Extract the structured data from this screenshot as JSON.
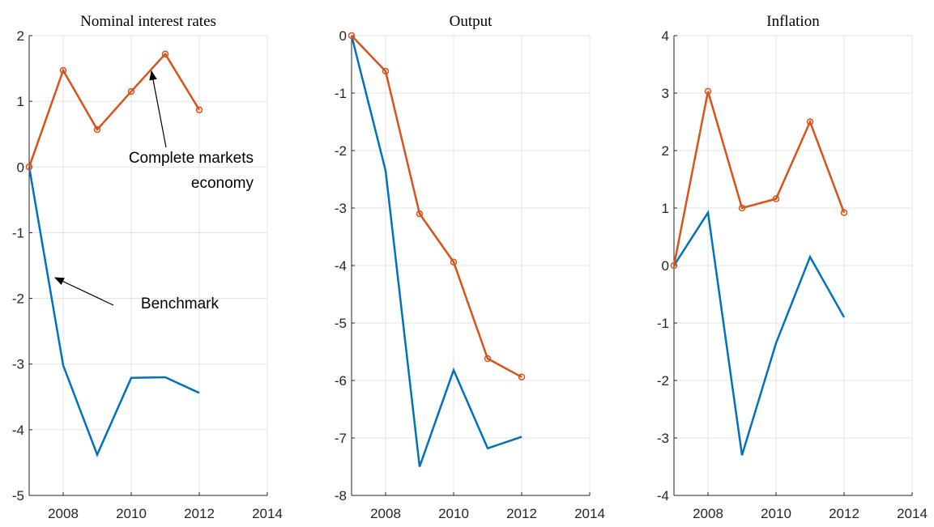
{
  "chart_data": [
    {
      "type": "line",
      "title": "Nominal interest rates",
      "x": [
        2007,
        2008,
        2009,
        2010,
        2011,
        2012
      ],
      "series": [
        {
          "color": "#0072bd",
          "values": [
            0,
            -3.02,
            -4.38,
            -3.21,
            -3.2,
            -3.44
          ]
        },
        {
          "color": "#d95319",
          "marker": "circle",
          "values": [
            0,
            1.47,
            0.57,
            1.15,
            1.72,
            0.87
          ]
        }
      ],
      "xlim": [
        2007,
        2014
      ],
      "xticks": [
        2008,
        2010,
        2012,
        2014
      ],
      "ylim": [
        -5,
        2
      ],
      "yticks": [
        -5,
        -4,
        -3,
        -2,
        -1,
        0,
        1,
        2
      ],
      "grid": true,
      "annotations": [
        {
          "lines": [
            "Complete markets",
            "economy"
          ]
        },
        {
          "lines": [
            "Benchmark"
          ]
        }
      ]
    },
    {
      "type": "line",
      "title": "Output",
      "x": [
        2007,
        2008,
        2009,
        2010,
        2011,
        2012
      ],
      "series": [
        {
          "color": "#0072bd",
          "values": [
            0,
            -2.35,
            -7.5,
            -5.82,
            -7.18,
            -6.98
          ]
        },
        {
          "color": "#d95319",
          "marker": "circle",
          "values": [
            0,
            -0.62,
            -3.1,
            -3.94,
            -5.62,
            -5.94
          ]
        }
      ],
      "xlim": [
        2007,
        2014
      ],
      "xticks": [
        2008,
        2010,
        2012,
        2014
      ],
      "ylim": [
        -8,
        0
      ],
      "yticks": [
        -8,
        -7,
        -6,
        -5,
        -4,
        -3,
        -2,
        -1,
        0
      ],
      "grid": true
    },
    {
      "type": "line",
      "title": "Inflation",
      "x": [
        2007,
        2008,
        2009,
        2010,
        2011,
        2012
      ],
      "series": [
        {
          "color": "#0072bd",
          "values": [
            0,
            0.92,
            -3.3,
            -1.35,
            0.15,
            -0.9
          ]
        },
        {
          "color": "#d95319",
          "marker": "circle",
          "values": [
            0,
            3.03,
            1.0,
            1.16,
            2.5,
            0.92
          ]
        }
      ],
      "xlim": [
        2007,
        2014
      ],
      "xticks": [
        2008,
        2010,
        2012,
        2014
      ],
      "ylim": [
        -4,
        4
      ],
      "yticks": [
        -4,
        -3,
        -2,
        -1,
        0,
        1,
        2,
        3,
        4
      ],
      "grid": true
    }
  ]
}
